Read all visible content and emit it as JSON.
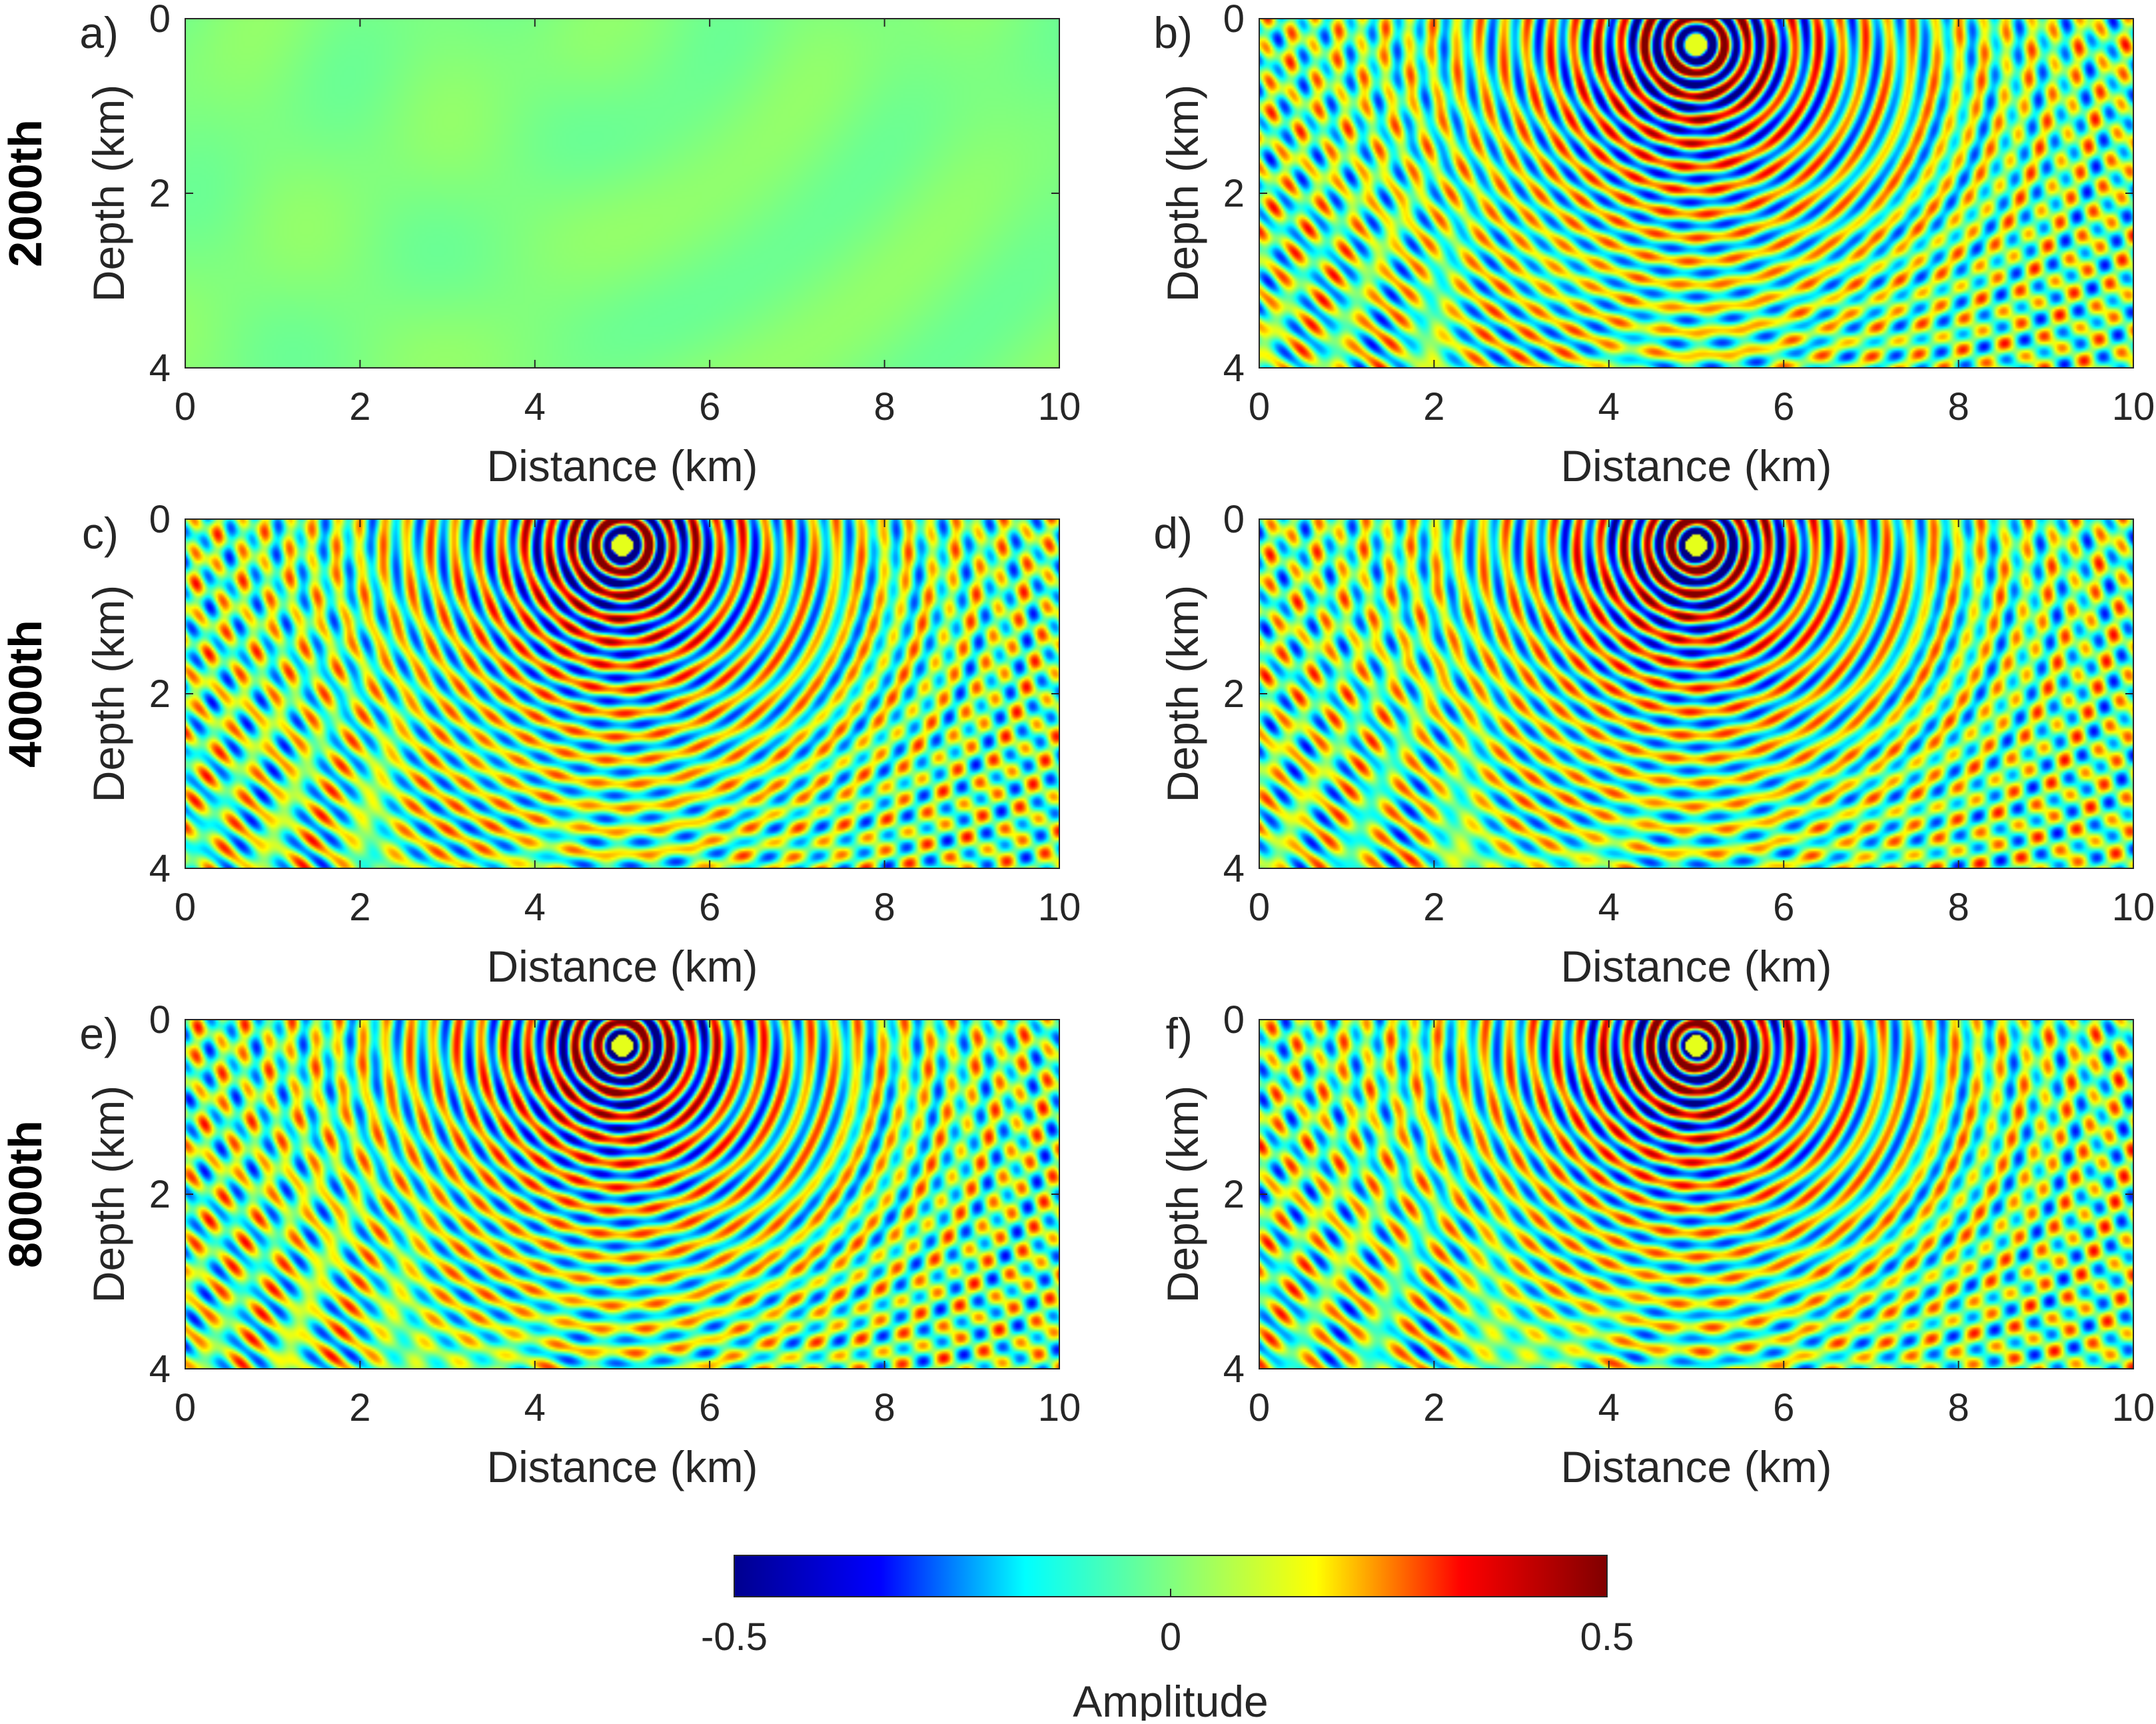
{
  "chart_data": [
    {
      "type": "heatmap",
      "panel_label": "a)",
      "row_label": "2000th",
      "xlabel": "Distance (km)",
      "ylabel": "Depth (km)",
      "xlim": [
        0,
        10
      ],
      "ylim": [
        0,
        4
      ],
      "xticks": [
        0,
        2,
        4,
        6,
        8,
        10
      ],
      "yticks": [
        0,
        2,
        4
      ],
      "y_reversed": true,
      "wavefield": {
        "source_x_km": 5,
        "source_z_km": 0.3,
        "peak_amplitude": 0.02
      }
    },
    {
      "type": "heatmap",
      "panel_label": "b)",
      "xlabel": "Distance (km)",
      "ylabel": "Depth (km)",
      "xlim": [
        0,
        10
      ],
      "ylim": [
        0,
        4
      ],
      "xticks": [
        0,
        2,
        4,
        6,
        8,
        10
      ],
      "yticks": [
        0,
        2,
        4
      ],
      "y_reversed": true,
      "wavefield": {
        "source_x_km": 5,
        "source_z_km": 0.3,
        "peak_amplitude": 0.5
      }
    },
    {
      "type": "heatmap",
      "panel_label": "c)",
      "row_label": "4000th",
      "xlabel": "Distance (km)",
      "ylabel": "Depth (km)",
      "xlim": [
        0,
        10
      ],
      "ylim": [
        0,
        4
      ],
      "xticks": [
        0,
        2,
        4,
        6,
        8,
        10
      ],
      "yticks": [
        0,
        2,
        4
      ],
      "y_reversed": true,
      "wavefield": {
        "source_x_km": 5,
        "source_z_km": 0.3,
        "peak_amplitude": 0.5
      }
    },
    {
      "type": "heatmap",
      "panel_label": "d)",
      "xlabel": "Distance (km)",
      "ylabel": "Depth (km)",
      "xlim": [
        0,
        10
      ],
      "ylim": [
        0,
        4
      ],
      "xticks": [
        0,
        2,
        4,
        6,
        8,
        10
      ],
      "yticks": [
        0,
        2,
        4
      ],
      "y_reversed": true,
      "wavefield": {
        "source_x_km": 5,
        "source_z_km": 0.3,
        "peak_amplitude": 0.5
      }
    },
    {
      "type": "heatmap",
      "panel_label": "e)",
      "row_label": "8000th",
      "xlabel": "Distance (km)",
      "ylabel": "Depth (km)",
      "xlim": [
        0,
        10
      ],
      "ylim": [
        0,
        4
      ],
      "xticks": [
        0,
        2,
        4,
        6,
        8,
        10
      ],
      "yticks": [
        0,
        2,
        4
      ],
      "y_reversed": true,
      "wavefield": {
        "source_x_km": 5,
        "source_z_km": 0.3,
        "peak_amplitude": 0.5
      }
    },
    {
      "type": "heatmap",
      "panel_label": "f)",
      "xlabel": "Distance (km)",
      "ylabel": "Depth (km)",
      "xlim": [
        0,
        10
      ],
      "ylim": [
        0,
        4
      ],
      "xticks": [
        0,
        2,
        4,
        6,
        8,
        10
      ],
      "yticks": [
        0,
        2,
        4
      ],
      "y_reversed": true,
      "wavefield": {
        "source_x_km": 5,
        "source_z_km": 0.3,
        "peak_amplitude": 0.5
      }
    }
  ],
  "colorbar": {
    "label": "Amplitude",
    "range": [
      -0.5,
      0.5
    ],
    "tick_labels": [
      "-0.5",
      "0",
      "0.5"
    ],
    "colormap": "jet",
    "stops": [
      "#00008f",
      "#0000ff",
      "#00ffff",
      "#80ff80",
      "#ffff00",
      "#ff0000",
      "#800000"
    ]
  }
}
